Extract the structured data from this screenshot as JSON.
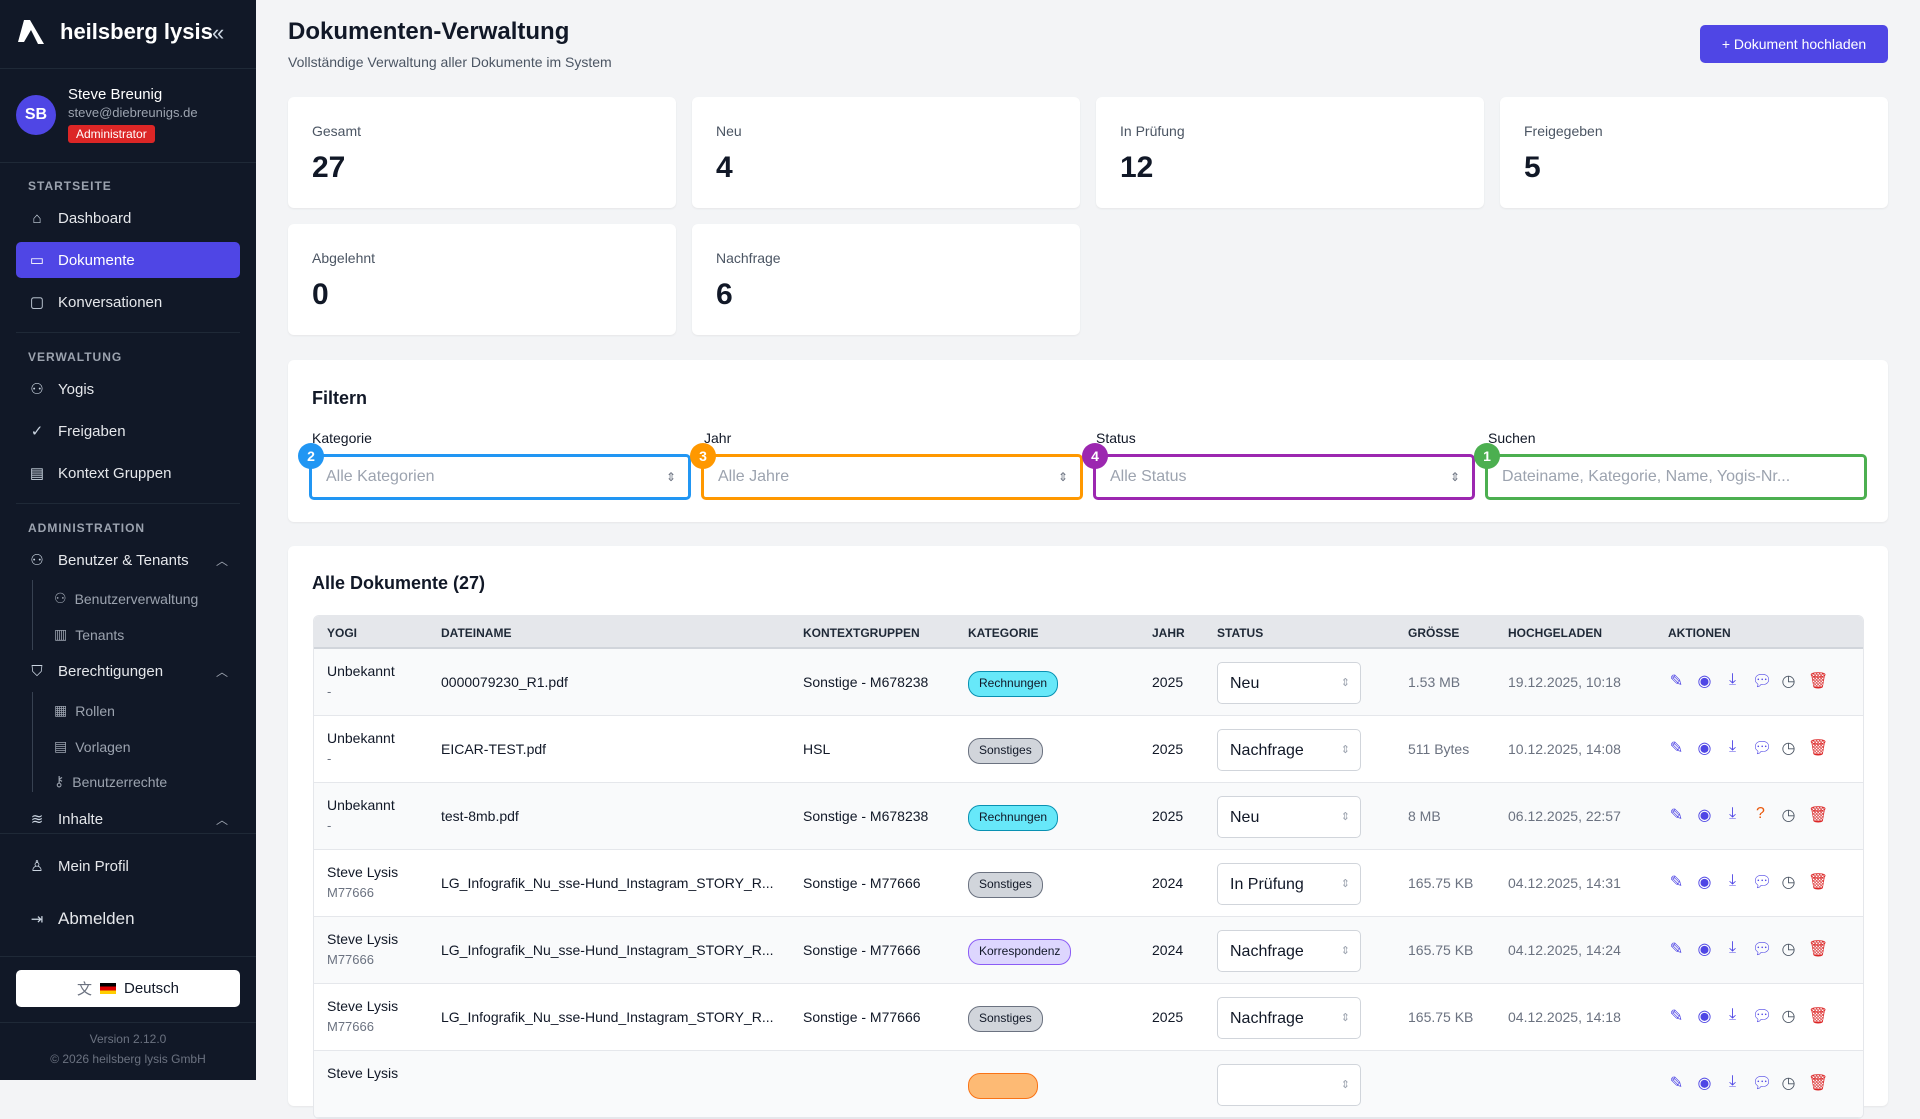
{
  "brand": {
    "name": "heilsberg lysis"
  },
  "user": {
    "initials": "SB",
    "name": "Steve Breunig",
    "email": "steve@diebreunigs.de",
    "role": "Administrator"
  },
  "sidebar": {
    "sections": [
      "STARTSEITE",
      "VERWALTUNG",
      "ADMINISTRATION"
    ],
    "items": [
      "Dashboard",
      "Dokumente",
      "Konversationen",
      "Yogis",
      "Freigaben",
      "Kontext Gruppen",
      "Benutzer & Tenants",
      "Benutzerverwaltung",
      "Tenants",
      "Berechtigungen",
      "Rollen",
      "Vorlagen",
      "Benutzerrechte",
      "Inhalte",
      "Mein Profil",
      "Abmelden"
    ],
    "language": "Deutsch",
    "version": "Version 2.12.0",
    "copyright": "© 2026 heilsberg lysis GmbH"
  },
  "header": {
    "title": "Dokumenten-Verwaltung",
    "subtitle": "Vollständige Verwaltung aller Dokumente im System",
    "upload": "+ Dokument hochladen"
  },
  "stats": [
    {
      "label": "Gesamt",
      "value": "27"
    },
    {
      "label": "Neu",
      "value": "4"
    },
    {
      "label": "In Prüfung",
      "value": "12"
    },
    {
      "label": "Freigegeben",
      "value": "5"
    },
    {
      "label": "Abgelehnt",
      "value": "0"
    },
    {
      "label": "Nachfrage",
      "value": "6"
    }
  ],
  "filters": {
    "title": "Filtern",
    "fields": [
      {
        "label": "Kategorie",
        "placeholder": "Alle Kategorien",
        "marker": "2",
        "color": "#2196f3"
      },
      {
        "label": "Jahr",
        "placeholder": "Alle Jahre",
        "marker": "3",
        "color": "#ff9800"
      },
      {
        "label": "Status",
        "placeholder": "Alle Status",
        "marker": "4",
        "color": "#9c27b0"
      },
      {
        "label": "Suchen",
        "placeholder": "Dateiname, Kategorie, Name, Yogis-Nr...",
        "marker": "1",
        "color": "#4caf50"
      }
    ]
  },
  "table": {
    "title": "Alle Dokumente (27)",
    "columns": [
      "YOGI",
      "DATEINAME",
      "KONTEXTGRUPPEN",
      "KATEGORIE",
      "JAHR",
      "STATUS",
      "GRÖSSE",
      "HOCHGELADEN",
      "AKTIONEN"
    ],
    "rows": [
      {
        "yogi": "Unbekannt",
        "yogi_id": "-",
        "file": "0000079230_R1.pdf",
        "context": "Sonstige - M678238",
        "category": "Rechnungen",
        "year": "2025",
        "status": "Neu",
        "size": "1.53 MB",
        "uploaded": "19.12.2025, 10:18",
        "comment": "chat"
      },
      {
        "yogi": "Unbekannt",
        "yogi_id": "-",
        "file": "EICAR-TEST.pdf",
        "context": "HSL",
        "category": "Sonstiges",
        "year": "2025",
        "status": "Nachfrage",
        "size": "511 Bytes",
        "uploaded": "10.12.2025, 14:08",
        "comment": "chat"
      },
      {
        "yogi": "Unbekannt",
        "yogi_id": "-",
        "file": "test-8mb.pdf",
        "context": "Sonstige - M678238",
        "category": "Rechnungen",
        "year": "2025",
        "status": "Neu",
        "size": "8 MB",
        "uploaded": "06.12.2025, 22:57",
        "comment": "question"
      },
      {
        "yogi": "Steve Lysis",
        "yogi_id": "M77666",
        "file": "LG_Infografik_Nu_sse-Hund_Instagram_STORY_R...",
        "context": "Sonstige - M77666",
        "category": "Sonstiges",
        "year": "2024",
        "status": "In Prüfung",
        "size": "165.75 KB",
        "uploaded": "04.12.2025, 14:31",
        "comment": "chat"
      },
      {
        "yogi": "Steve Lysis",
        "yogi_id": "M77666",
        "file": "LG_Infografik_Nu_sse-Hund_Instagram_STORY_R...",
        "context": "Sonstige - M77666",
        "category": "Korrespondenz",
        "year": "2024",
        "status": "Nachfrage",
        "size": "165.75 KB",
        "uploaded": "04.12.2025, 14:24",
        "comment": "chat"
      },
      {
        "yogi": "Steve Lysis",
        "yogi_id": "M77666",
        "file": "LG_Infografik_Nu_sse-Hund_Instagram_STORY_R...",
        "context": "Sonstige - M77666",
        "category": "Sonstiges",
        "year": "2025",
        "status": "Nachfrage",
        "size": "165.75 KB",
        "uploaded": "04.12.2025, 14:18",
        "comment": "chat"
      },
      {
        "yogi": "Steve Lysis",
        "yogi_id": "",
        "file": "",
        "context": "",
        "category": "",
        "year": "",
        "status": "",
        "size": "",
        "uploaded": "",
        "comment": "chat"
      }
    ]
  },
  "colors": {
    "accent": "#4f46e5",
    "sidebar": "#111827",
    "danger": "#dc2626"
  }
}
